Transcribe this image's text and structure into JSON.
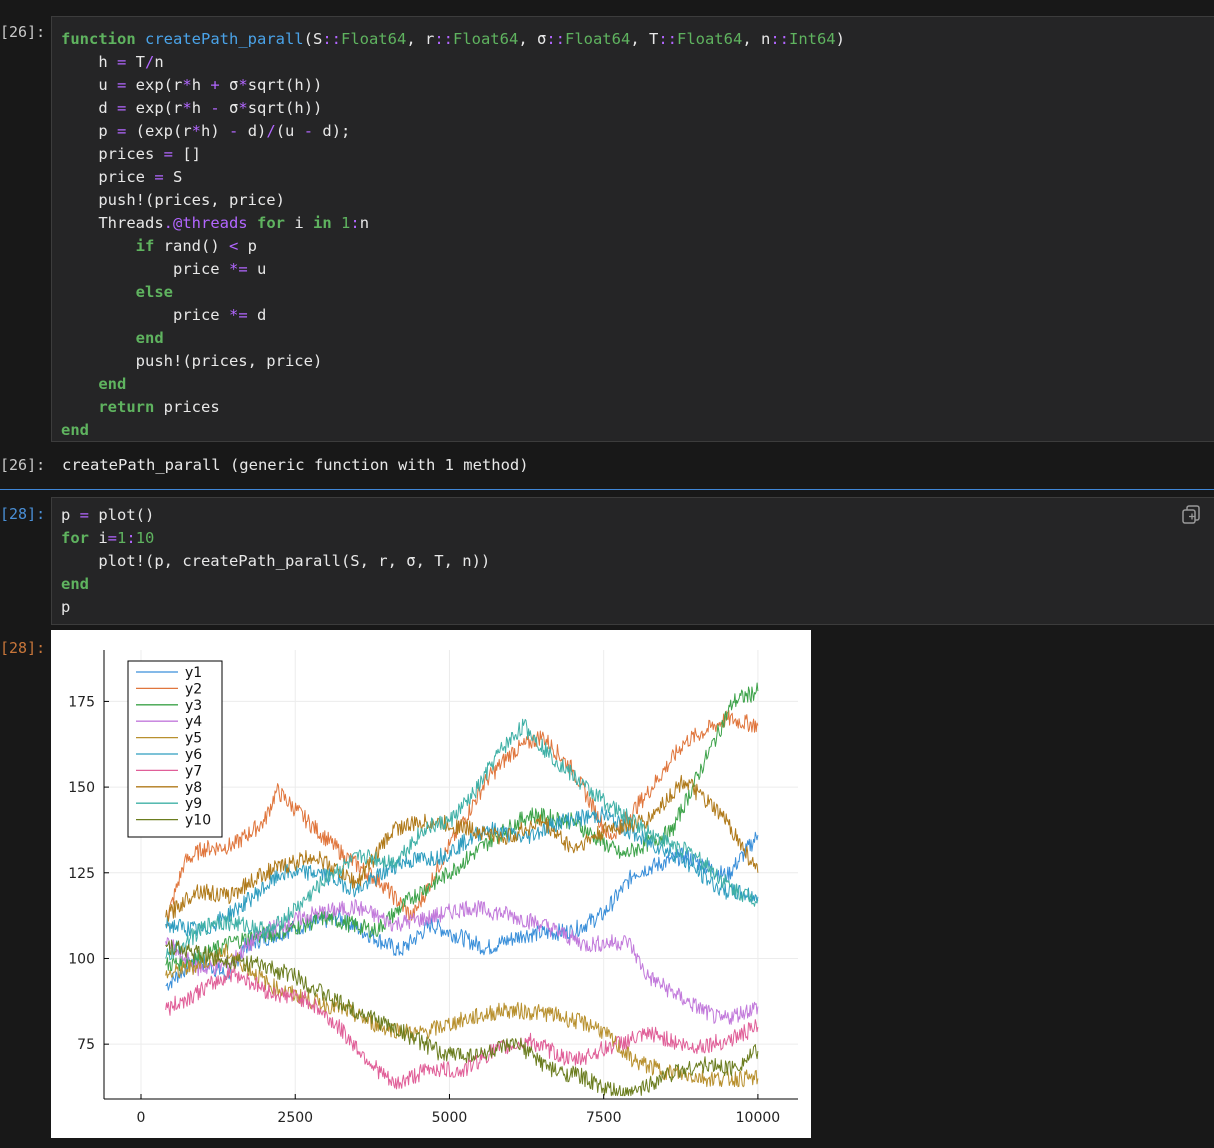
{
  "cells": [
    {
      "prompt": "[26]:",
      "code_lines": [
        [
          [
            "kw",
            "function"
          ],
          [
            "t",
            " "
          ],
          [
            "fn",
            "createPath_parall"
          ],
          [
            "t",
            "(S"
          ],
          [
            "op",
            "::"
          ],
          [
            "ty",
            "Float64"
          ],
          [
            "t",
            ", r"
          ],
          [
            "op",
            "::"
          ],
          [
            "ty",
            "Float64"
          ],
          [
            "t",
            ", σ"
          ],
          [
            "op",
            "::"
          ],
          [
            "ty",
            "Float64"
          ],
          [
            "t",
            ", T"
          ],
          [
            "op",
            "::"
          ],
          [
            "ty",
            "Float64"
          ],
          [
            "t",
            ", n"
          ],
          [
            "op",
            "::"
          ],
          [
            "ty",
            "Int64"
          ],
          [
            "t",
            ")"
          ]
        ],
        [
          [
            "t",
            "    h "
          ],
          [
            "op",
            "="
          ],
          [
            "t",
            " T"
          ],
          [
            "op",
            "/"
          ],
          [
            "t",
            "n"
          ]
        ],
        [
          [
            "t",
            "    u "
          ],
          [
            "op",
            "="
          ],
          [
            "t",
            " exp(r"
          ],
          [
            "op",
            "*"
          ],
          [
            "t",
            "h "
          ],
          [
            "op",
            "+"
          ],
          [
            "t",
            " σ"
          ],
          [
            "op",
            "*"
          ],
          [
            "t",
            "sqrt(h))"
          ]
        ],
        [
          [
            "t",
            "    d "
          ],
          [
            "op",
            "="
          ],
          [
            "t",
            " exp(r"
          ],
          [
            "op",
            "*"
          ],
          [
            "t",
            "h "
          ],
          [
            "op",
            "-"
          ],
          [
            "t",
            " σ"
          ],
          [
            "op",
            "*"
          ],
          [
            "t",
            "sqrt(h))"
          ]
        ],
        [
          [
            "t",
            "    p "
          ],
          [
            "op",
            "="
          ],
          [
            "t",
            " (exp(r"
          ],
          [
            "op",
            "*"
          ],
          [
            "t",
            "h) "
          ],
          [
            "op",
            "-"
          ],
          [
            "t",
            " d)"
          ],
          [
            "op",
            "/"
          ],
          [
            "t",
            "(u "
          ],
          [
            "op",
            "-"
          ],
          [
            "t",
            " d);"
          ]
        ],
        [
          [
            "t",
            "    prices "
          ],
          [
            "op",
            "="
          ],
          [
            "t",
            " []"
          ]
        ],
        [
          [
            "t",
            "    price "
          ],
          [
            "op",
            "="
          ],
          [
            "t",
            " S"
          ]
        ],
        [
          [
            "t",
            "    push!(prices, price)"
          ]
        ],
        [
          [
            "t",
            "    Threads"
          ],
          [
            "mac",
            ".@threads"
          ],
          [
            "t",
            " "
          ],
          [
            "kw",
            "for"
          ],
          [
            "t",
            " i "
          ],
          [
            "kw",
            "in"
          ],
          [
            "t",
            " "
          ],
          [
            "num",
            "1"
          ],
          [
            "op",
            ":"
          ],
          [
            "t",
            "n"
          ]
        ],
        [
          [
            "t",
            "        "
          ],
          [
            "kw",
            "if"
          ],
          [
            "t",
            " rand() "
          ],
          [
            "op",
            "<"
          ],
          [
            "t",
            " p"
          ]
        ],
        [
          [
            "t",
            "            price "
          ],
          [
            "op",
            "*="
          ],
          [
            "t",
            " u"
          ]
        ],
        [
          [
            "t",
            "        "
          ],
          [
            "kw",
            "else"
          ]
        ],
        [
          [
            "t",
            "            price "
          ],
          [
            "op",
            "*="
          ],
          [
            "t",
            " d"
          ]
        ],
        [
          [
            "t",
            "        "
          ],
          [
            "kw",
            "end"
          ]
        ],
        [
          [
            "t",
            "        push!(prices, price)"
          ]
        ],
        [
          [
            "t",
            "    "
          ],
          [
            "kw",
            "end"
          ]
        ],
        [
          [
            "t",
            "    "
          ],
          [
            "kw",
            "return"
          ],
          [
            "t",
            " prices"
          ]
        ],
        [
          [
            "kw",
            "end"
          ]
        ]
      ],
      "output_prompt": "[26]:",
      "output_text": "createPath_parall (generic function with 1 method)"
    },
    {
      "prompt": "[28]:",
      "code_lines": [
        [
          [
            "t",
            "p "
          ],
          [
            "op",
            "="
          ],
          [
            "t",
            " plot()"
          ]
        ],
        [
          [
            "kw",
            "for"
          ],
          [
            "t",
            " i"
          ],
          [
            "op",
            "="
          ],
          [
            "num",
            "1"
          ],
          [
            "op",
            ":"
          ],
          [
            "num",
            "10"
          ]
        ],
        [
          [
            "t",
            "    plot!(p, createPath_parall(S, r, σ, T, n))"
          ]
        ],
        [
          [
            "kw",
            "end"
          ]
        ],
        [
          [
            "t",
            "p"
          ]
        ]
      ],
      "output_prompt": "[28]:"
    }
  ],
  "icons": {
    "copy": "copy-icon"
  },
  "chart_data": {
    "type": "line",
    "title": "",
    "xlabel": "",
    "ylabel": "",
    "xlim": [
      -600,
      10650
    ],
    "ylim": [
      59,
      190
    ],
    "xticks": [
      0,
      2500,
      5000,
      7500,
      10000
    ],
    "yticks": [
      75,
      100,
      125,
      150,
      175
    ],
    "grid": true,
    "legend_position": "top-left",
    "series": [
      {
        "name": "y1",
        "color": "#3a8fd9",
        "x": [
          400,
          900,
          1400,
          1700,
          2500,
          3200,
          4200,
          4700,
          5600,
          6200,
          7000,
          7500,
          8000,
          8800,
          9500,
          10000
        ],
        "values": [
          92,
          100,
          95,
          104,
          109,
          112,
          102,
          110,
          103,
          107,
          108,
          113,
          125,
          130,
          124,
          136
        ]
      },
      {
        "name": "y2",
        "color": "#e0763d",
        "x": [
          400,
          700,
          1000,
          1500,
          2000,
          2200,
          2700,
          3300,
          3900,
          4400,
          5000,
          5600,
          6000,
          6500,
          7000,
          7600,
          8200,
          8800,
          9500,
          10000
        ],
        "values": [
          110,
          128,
          132,
          133,
          140,
          149,
          140,
          130,
          122,
          112,
          133,
          152,
          160,
          165,
          155,
          135,
          148,
          163,
          170,
          168
        ]
      },
      {
        "name": "y3",
        "color": "#3da34a",
        "x": [
          400,
          900,
          1500,
          2300,
          3000,
          3800,
          4400,
          5000,
          5700,
          6300,
          7000,
          7800,
          8600,
          9200,
          9600,
          10000
        ],
        "values": [
          98,
          100,
          105,
          108,
          112,
          108,
          118,
          125,
          135,
          142,
          140,
          130,
          137,
          160,
          175,
          178
        ]
      },
      {
        "name": "y4",
        "color": "#c27adb",
        "x": [
          400,
          900,
          1400,
          2000,
          2800,
          3500,
          4100,
          4700,
          5300,
          5900,
          6500,
          7200,
          7900,
          8200,
          8800,
          9400,
          10000
        ],
        "values": [
          105,
          97,
          98,
          108,
          113,
          115,
          110,
          112,
          115,
          113,
          110,
          104,
          105,
          95,
          88,
          82,
          86
        ]
      },
      {
        "name": "y5",
        "color": "#b8902e",
        "x": [
          400,
          900,
          1400,
          2100,
          2700,
          3300,
          3900,
          4500,
          5200,
          5900,
          6600,
          7400,
          8000,
          8500,
          9200,
          10000
        ],
        "values": [
          95,
          98,
          102,
          92,
          88,
          85,
          80,
          78,
          82,
          85,
          84,
          80,
          70,
          67,
          65,
          65
        ]
      },
      {
        "name": "y6",
        "color": "#2e9dbf",
        "x": [
          400,
          1000,
          1600,
          2300,
          2900,
          3500,
          4200,
          4900,
          5600,
          6200,
          6800,
          7500,
          8100,
          8700,
          9400,
          10000
        ],
        "values": [
          110,
          108,
          115,
          125,
          125,
          120,
          128,
          130,
          138,
          135,
          140,
          142,
          135,
          130,
          120,
          118
        ]
      },
      {
        "name": "y7",
        "color": "#e05f98",
        "x": [
          400,
          900,
          1500,
          2100,
          2700,
          3200,
          3700,
          4100,
          4700,
          5200,
          5700,
          6300,
          7000,
          7700,
          8300,
          8900,
          9500,
          10000
        ],
        "values": [
          85,
          90,
          96,
          90,
          88,
          80,
          70,
          63,
          68,
          67,
          73,
          76,
          70,
          75,
          78,
          74,
          76,
          80
        ]
      },
      {
        "name": "y8",
        "color": "#b07a1a",
        "x": [
          400,
          900,
          1400,
          2000,
          2800,
          3500,
          4100,
          4700,
          5300,
          5900,
          6500,
          7000,
          7600,
          8200,
          8800,
          9500,
          10000
        ],
        "values": [
          112,
          120,
          118,
          125,
          130,
          122,
          138,
          140,
          138,
          135,
          140,
          132,
          138,
          140,
          152,
          140,
          125
        ]
      },
      {
        "name": "y9",
        "color": "#3fb0a6",
        "x": [
          400,
          800,
          1200,
          1600,
          2100,
          2600,
          3100,
          3600,
          4100,
          4600,
          5000,
          5400,
          5800,
          6200,
          6600,
          7200,
          7800,
          8400,
          9000,
          9600,
          10000
        ],
        "values": [
          100,
          106,
          111,
          110,
          108,
          116,
          125,
          130,
          128,
          138,
          140,
          148,
          160,
          168,
          160,
          150,
          142,
          135,
          130,
          120,
          117
        ]
      },
      {
        "name": "y10",
        "color": "#6b7d1f",
        "x": [
          400,
          800,
          1300,
          1900,
          2500,
          3100,
          3700,
          4300,
          4900,
          5500,
          6100,
          6700,
          7100,
          7500,
          7900,
          8500,
          9100,
          9600,
          10000
        ],
        "values": [
          104,
          102,
          100,
          98,
          95,
          88,
          83,
          78,
          72,
          72,
          75,
          67,
          66,
          62,
          60,
          66,
          69,
          68,
          73
        ]
      }
    ]
  }
}
